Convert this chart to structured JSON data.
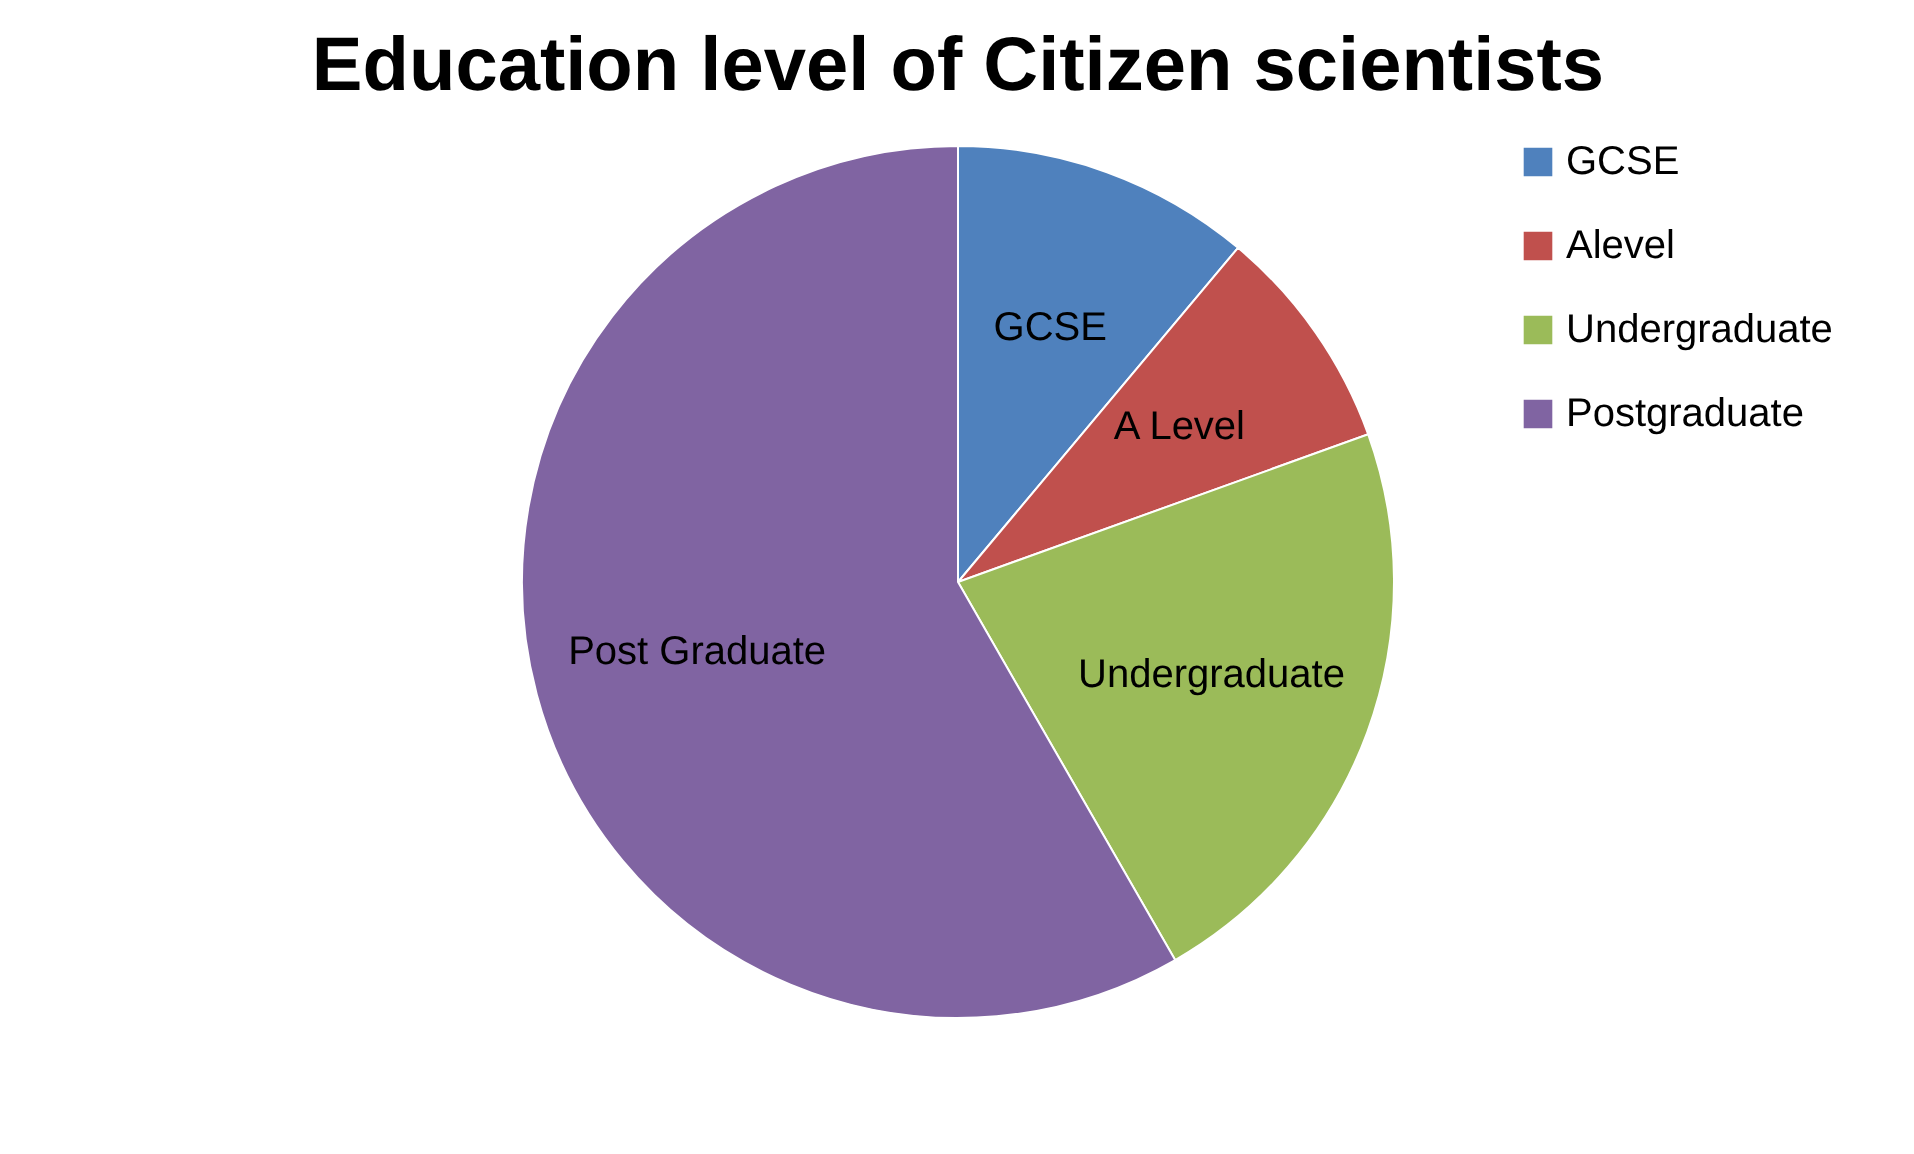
{
  "chart_data": {
    "type": "pie",
    "title": "Education level of Citizen scientists",
    "categories": [
      "GCSE",
      "Alevel",
      "Undergraduate",
      "Postgraduate"
    ],
    "values": [
      11.1,
      8.4,
      22.2,
      58.3
    ],
    "value_labels": [
      "GCSE",
      "A Level",
      "Undergraduate",
      "Post Graduate"
    ],
    "colors": [
      "#4f81bd",
      "#c0504d",
      "#9bbb59",
      "#8064a2"
    ],
    "legend": "right"
  }
}
